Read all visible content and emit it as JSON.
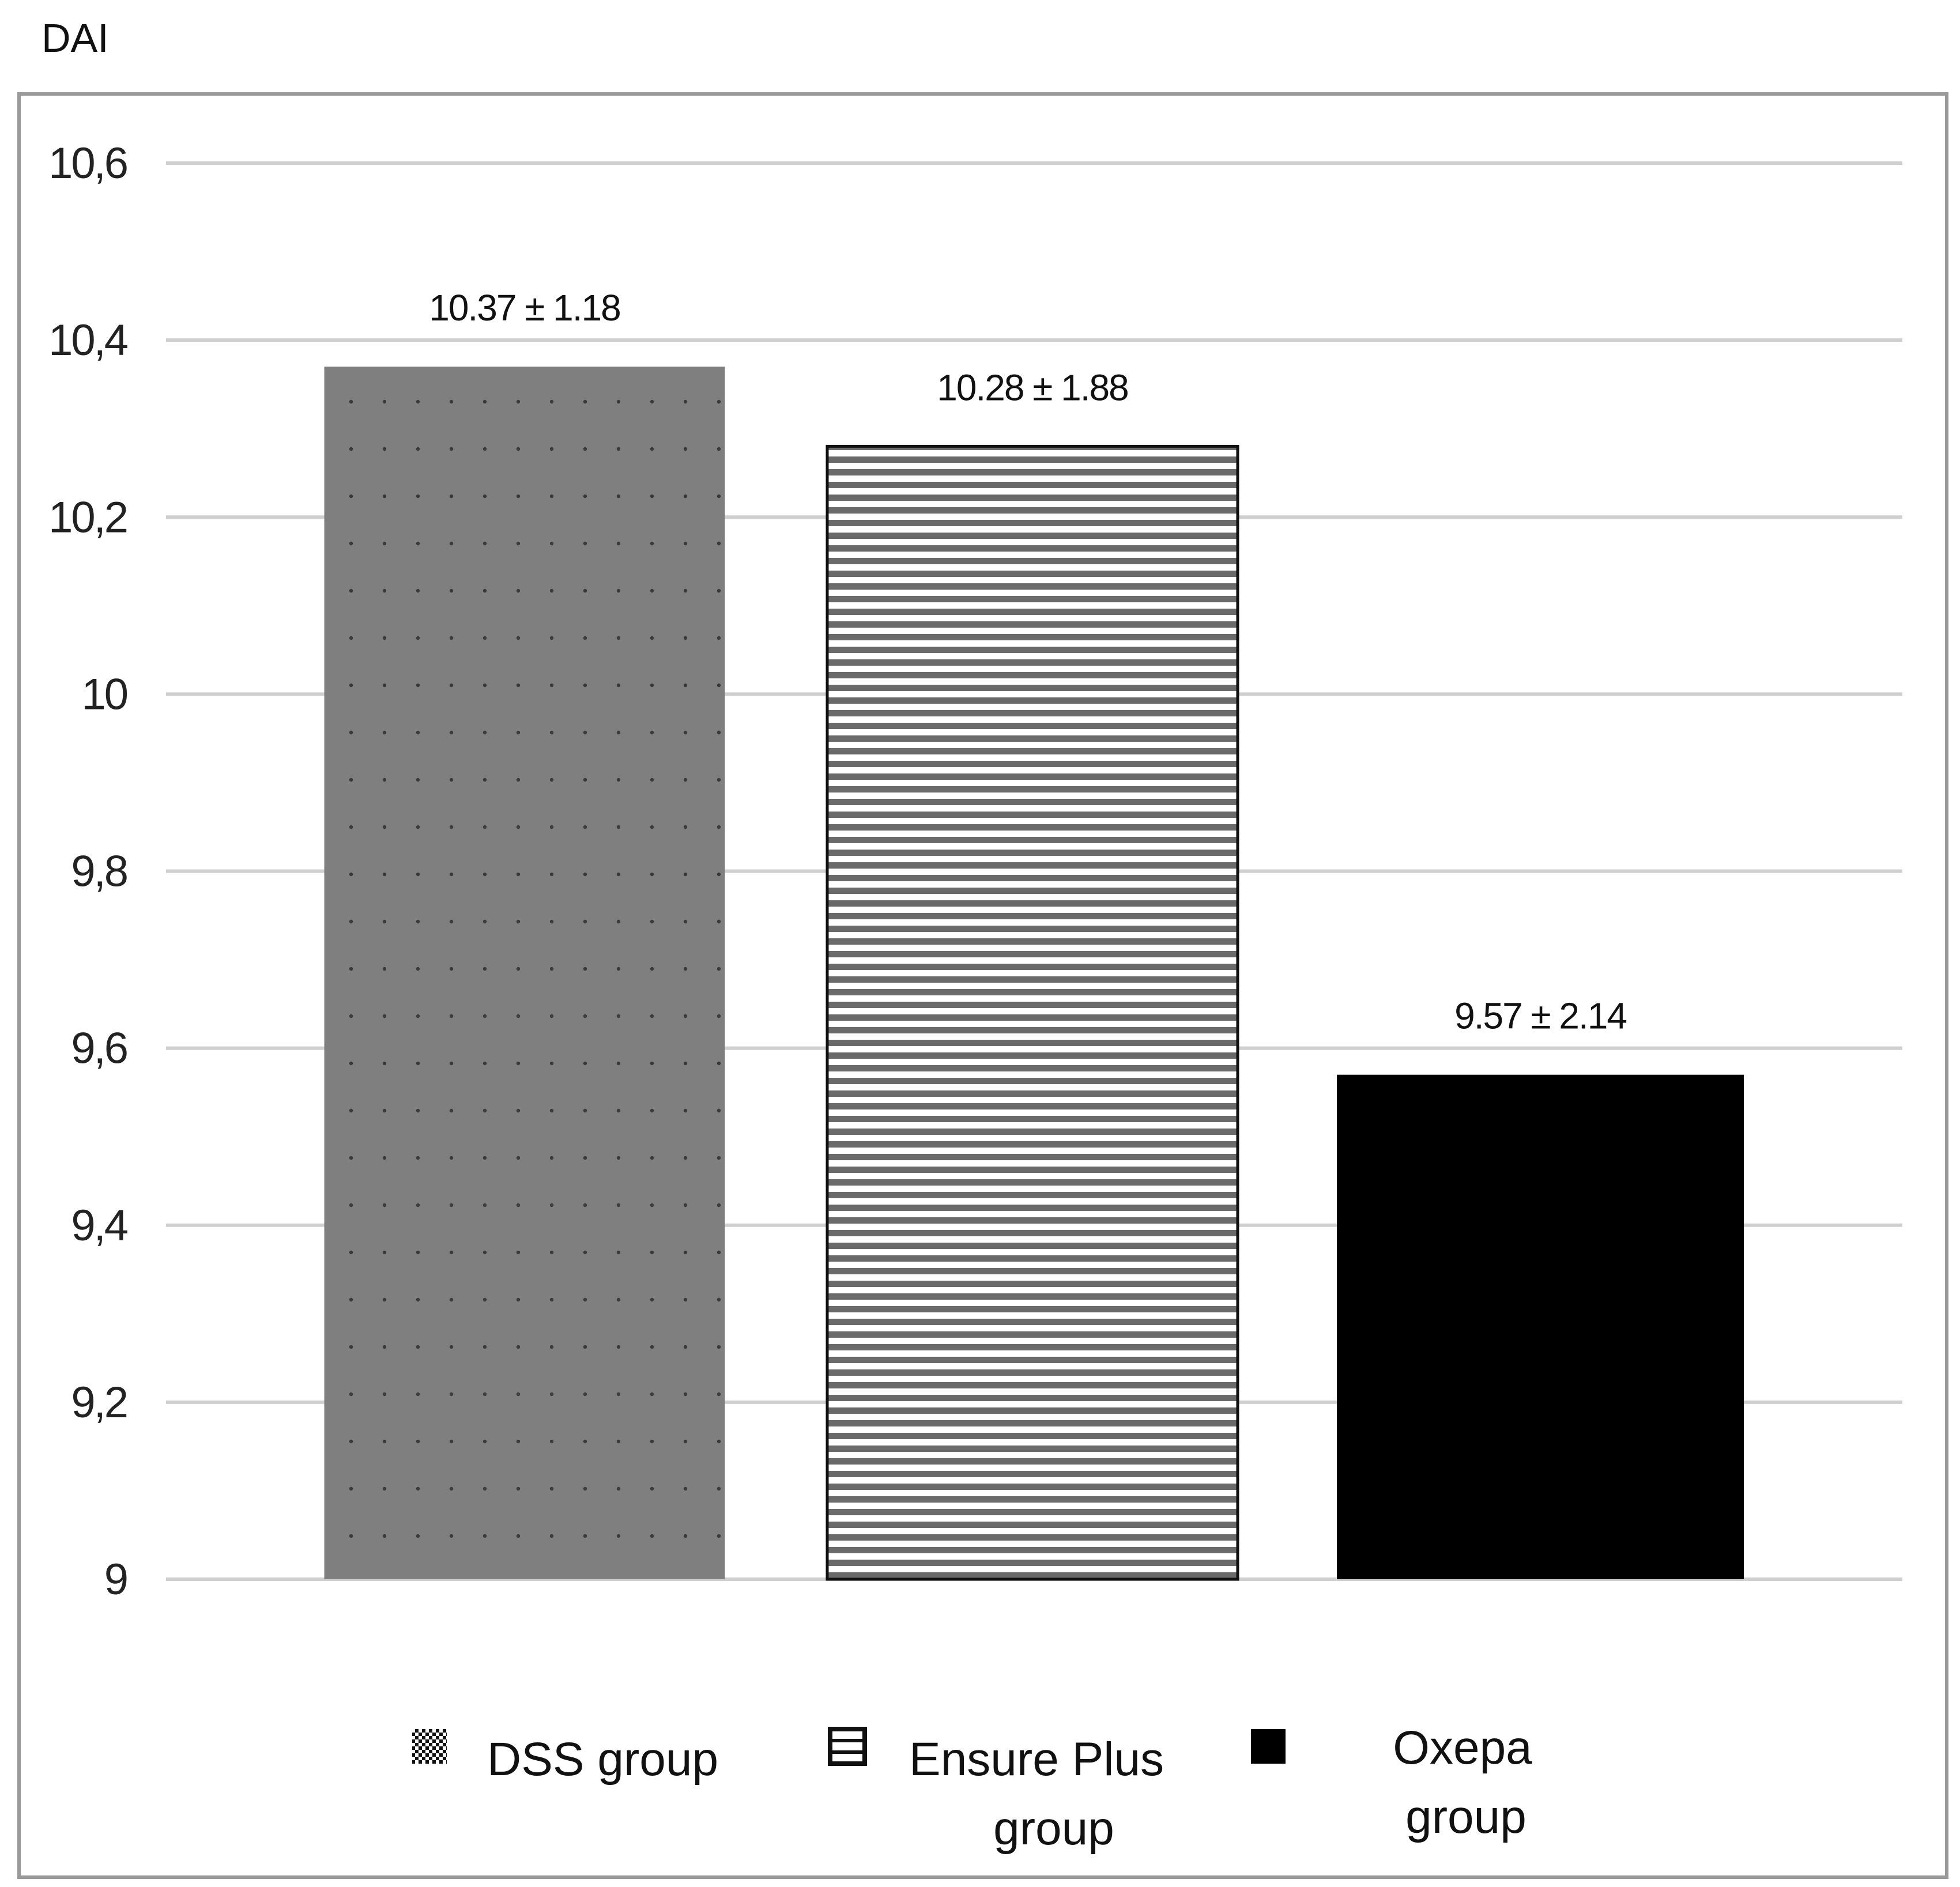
{
  "chart_data": {
    "type": "bar",
    "ylabel": "DAI",
    "xlabel": "",
    "ylim": [
      9,
      10.6
    ],
    "yticks": [
      {
        "value": 9,
        "label": "9"
      },
      {
        "value": 9.2,
        "label": "9,2"
      },
      {
        "value": 9.4,
        "label": "9,4"
      },
      {
        "value": 9.6,
        "label": "9,6"
      },
      {
        "value": 9.8,
        "label": "9,8"
      },
      {
        "value": 10,
        "label": "10"
      },
      {
        "value": 10.2,
        "label": "10,2"
      },
      {
        "value": 10.4,
        "label": "10,4"
      },
      {
        "value": 10.6,
        "label": "10,6"
      }
    ],
    "grid": true,
    "legend_position": "bottom",
    "categories": [
      "DSS group",
      "Ensure Plus group",
      "Oxepa group"
    ],
    "values": [
      10.37,
      10.28,
      9.57
    ],
    "errors": [
      1.18,
      1.88,
      2.14
    ],
    "data_labels": [
      "10.37 ± 1.18",
      "10.28 ± 1.88",
      "9.57 ± 2.14"
    ],
    "series": [
      {
        "name_lines": [
          "DSS group"
        ],
        "pattern": "dots",
        "color": "#7f7f7f",
        "legend_icon": "checker-square-icon"
      },
      {
        "name_lines": [
          "Ensure Plus",
          "group"
        ],
        "pattern": "horizontal-stripes",
        "color": "#ffffff",
        "legend_icon": "striped-square-icon"
      },
      {
        "name_lines": [
          "Oxepa",
          "group"
        ],
        "pattern": "solid",
        "color": "#000000",
        "legend_icon": "solid-square-icon"
      }
    ],
    "colors": {
      "grid": "#cfcfcf",
      "frame": "#9a9a9a",
      "dots": "#3a3a3a",
      "stripe": "#6a6a6a"
    }
  }
}
